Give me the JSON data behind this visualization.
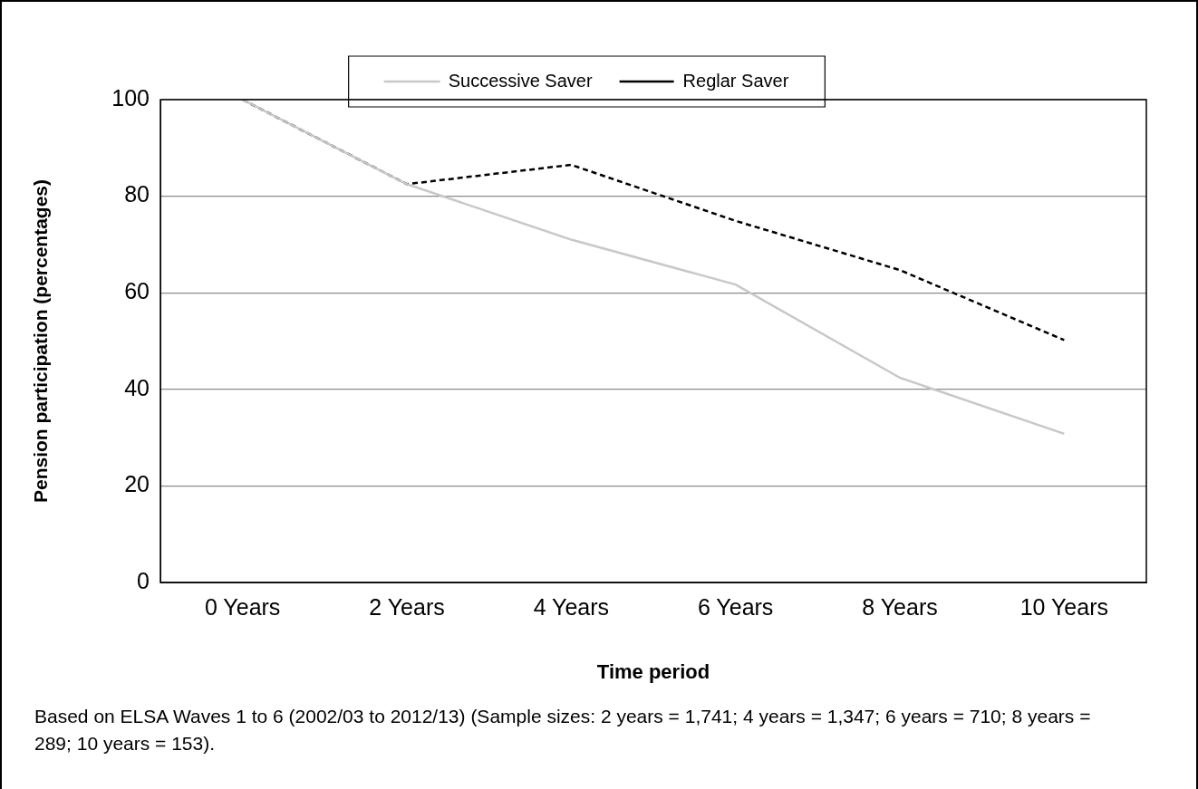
{
  "chart_data": {
    "type": "line",
    "xlabel": "Time period",
    "ylabel": "Pension participation (percentages)",
    "categories": [
      "0 Years",
      "2 Years",
      "4 Years",
      "6 Years",
      "8 Years",
      "10 Years"
    ],
    "series": [
      {
        "name": "Successive Saver",
        "color": "#c8c8c8",
        "line_style": "solid",
        "values": [
          100,
          82.5,
          71,
          61.7,
          42.4,
          30.8
        ]
      },
      {
        "name": "Reglar Saver",
        "color": "#000000",
        "line_style": "dashed",
        "values": [
          100,
          82.5,
          86.5,
          74.9,
          64.7,
          50.2
        ]
      }
    ],
    "ylim": [
      0,
      100
    ],
    "yticks": [
      0,
      20,
      40,
      60,
      80,
      100
    ],
    "grid": "y",
    "legend": "top",
    "marker": "none",
    "annotations": [
      "Based on ELSA Waves 1 to 6 (2002/03 to 2012/13) (Sample sizes: 2 years = 1,741; 4 years = 1,347; 6 years = 710; 8 years = 289; 10 years = 153)."
    ]
  }
}
